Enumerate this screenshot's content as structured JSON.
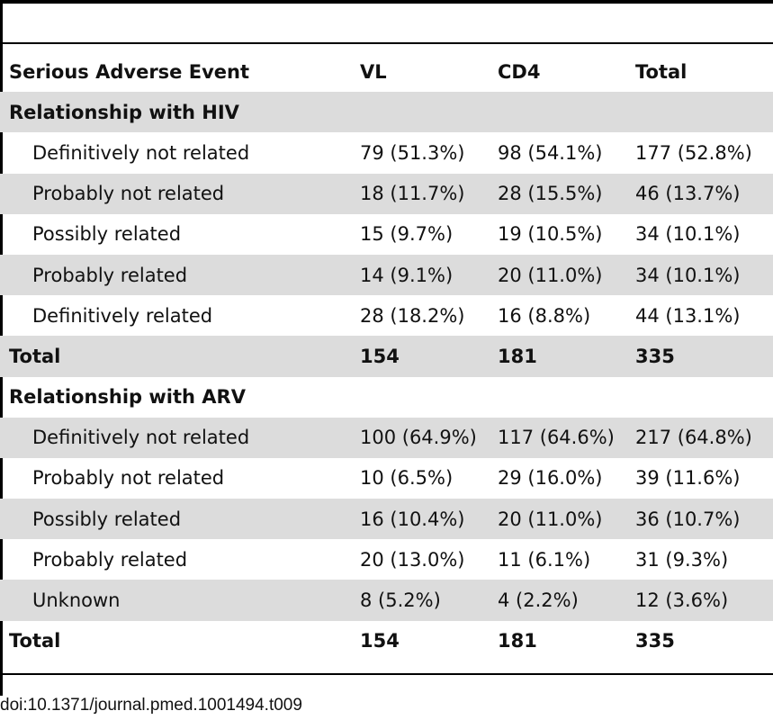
{
  "table": {
    "header": {
      "event": "Serious Adverse Event",
      "vl": "VL",
      "cd4": "CD4",
      "total": "Total"
    },
    "sections": [
      {
        "title": "Relationship with HIV",
        "rows": [
          {
            "label": "Definitively not related",
            "vl": "79 (51.3%)",
            "cd4": "98 (54.1%)",
            "total": "177 (52.8%)"
          },
          {
            "label": "Probably not related",
            "vl": "18 (11.7%)",
            "cd4": "28 (15.5%)",
            "total": "46 (13.7%)"
          },
          {
            "label": "Possibly related",
            "vl": "15 (9.7%)",
            "cd4": "19 (10.5%)",
            "total": "34 (10.1%)"
          },
          {
            "label": "Probably related",
            "vl": "14 (9.1%)",
            "cd4": "20 (11.0%)",
            "total": "34 (10.1%)"
          },
          {
            "label": "Definitively related",
            "vl": "28 (18.2%)",
            "cd4": "16 (8.8%)",
            "total": "44 (13.1%)"
          }
        ],
        "total": {
          "label": "Total",
          "vl": "154",
          "cd4": "181",
          "total": "335"
        }
      },
      {
        "title": "Relationship with ARV",
        "rows": [
          {
            "label": "Definitively not related",
            "vl": "100 (64.9%)",
            "cd4": "117 (64.6%)",
            "total": "217 (64.8%)"
          },
          {
            "label": "Probably not related",
            "vl": "10 (6.5%)",
            "cd4": "29 (16.0%)",
            "total": "39 (11.6%)"
          },
          {
            "label": "Possibly related",
            "vl": "16 (10.4%)",
            "cd4": "20 (11.0%)",
            "total": "36 (10.7%)"
          },
          {
            "label": "Probably related",
            "vl": "20 (13.0%)",
            "cd4": "11 (6.1%)",
            "total": "31 (9.3%)"
          },
          {
            "label": "Unknown",
            "vl": "8 (5.2%)",
            "cd4": "4 (2.2%)",
            "total": "12 (3.6%)"
          }
        ],
        "total": {
          "label": "Total",
          "vl": "154",
          "cd4": "181",
          "total": "335"
        }
      }
    ]
  },
  "caption": "doi:10.1371/journal.pmed.1001494.t009"
}
